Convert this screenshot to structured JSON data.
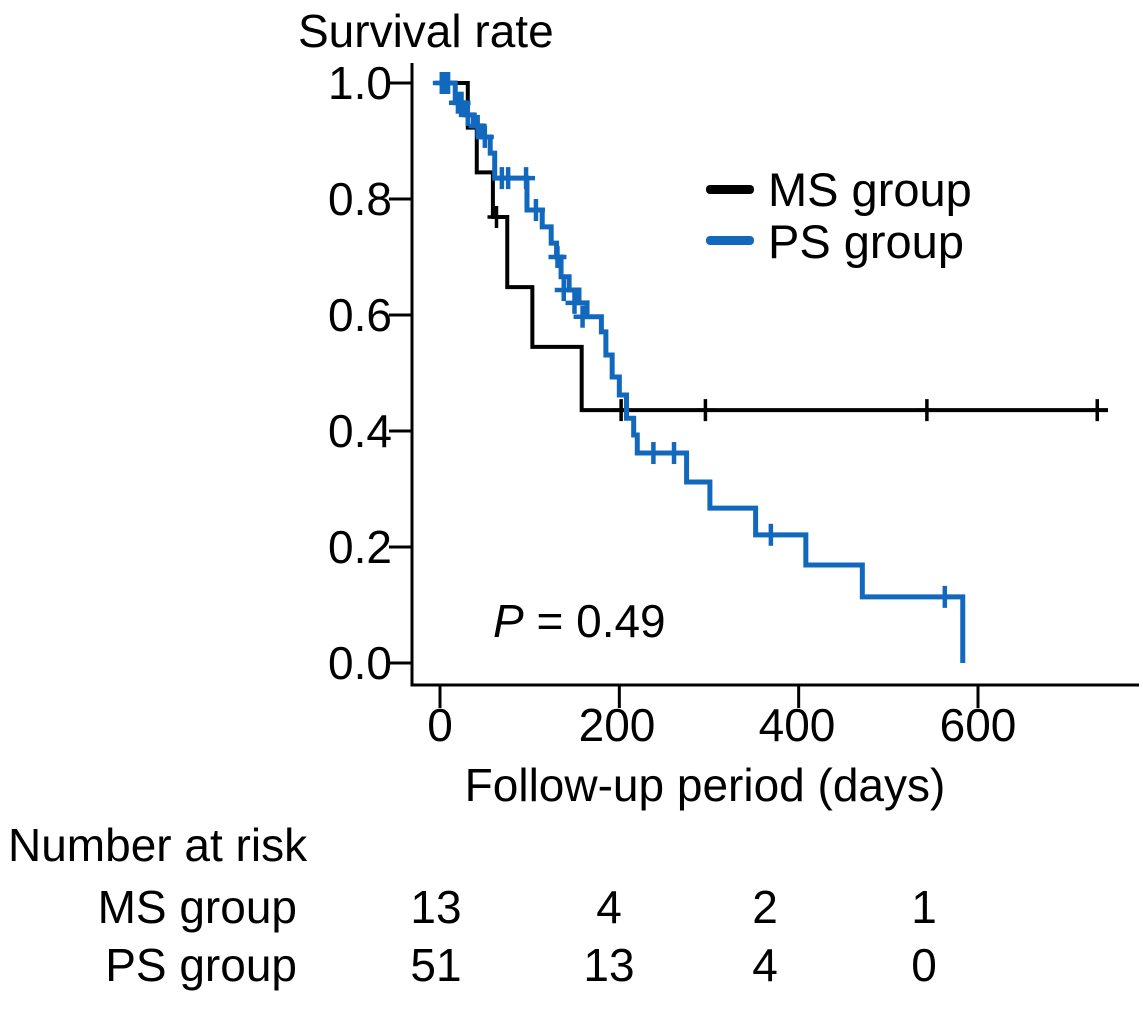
{
  "chart_data": {
    "type": "line",
    "subtype": "kaplan-meier-step",
    "title": "Survival rate",
    "xlabel": "Follow-up period (days)",
    "ylabel": "Survival rate",
    "xlim": [
      0,
      780
    ],
    "ylim": [
      0.0,
      1.0
    ],
    "grid": false,
    "legend_position": "upper right",
    "xticks": [
      0,
      200,
      400,
      600
    ],
    "yticks": [
      1.0,
      0.8,
      0.6,
      0.4,
      0.2,
      0.0
    ],
    "xtick_labels": [
      "0",
      "200",
      "400",
      "600"
    ],
    "ytick_labels": [
      "1.0",
      "0.8",
      "0.6",
      "0.4",
      "0.2",
      "0.0"
    ],
    "annotation": {
      "prefix": "P",
      "rest": " = 0.49"
    },
    "legend": [
      {
        "label": "MS group",
        "color": "#000000"
      },
      {
        "label": "PS group",
        "color": "#1268bd"
      }
    ],
    "series": [
      {
        "name": "MS group",
        "color": "#000000",
        "line_width": 4,
        "end_day": 745,
        "steps": [
          [
            0,
            1.0
          ],
          [
            31,
            0.923
          ],
          [
            41,
            0.846
          ],
          [
            59,
            0.769
          ],
          [
            75,
            0.648
          ],
          [
            103,
            0.545
          ],
          [
            158,
            0.436
          ]
        ],
        "censors": [
          [
            63,
            0.769
          ],
          [
            202,
            0.436
          ],
          [
            296,
            0.436
          ],
          [
            543,
            0.436
          ],
          [
            733,
            0.436
          ]
        ]
      },
      {
        "name": "PS group",
        "color": "#1268bd",
        "line_width": 5,
        "end_day": 583,
        "steps": [
          [
            0,
            1.0
          ],
          [
            17,
            0.966
          ],
          [
            28,
            0.945
          ],
          [
            37,
            0.926
          ],
          [
            47,
            0.907
          ],
          [
            56,
            0.879
          ],
          [
            61,
            0.836
          ],
          [
            97,
            0.781
          ],
          [
            114,
            0.752
          ],
          [
            124,
            0.724
          ],
          [
            130,
            0.7
          ],
          [
            135,
            0.666
          ],
          [
            144,
            0.643
          ],
          [
            155,
            0.621
          ],
          [
            164,
            0.597
          ],
          [
            180,
            0.571
          ],
          [
            185,
            0.531
          ],
          [
            192,
            0.493
          ],
          [
            200,
            0.462
          ],
          [
            208,
            0.422
          ],
          [
            216,
            0.393
          ],
          [
            220,
            0.362
          ],
          [
            275,
            0.312
          ],
          [
            301,
            0.267
          ],
          [
            352,
            0.221
          ],
          [
            408,
            0.169
          ],
          [
            471,
            0.114
          ],
          [
            583,
            0.0
          ]
        ],
        "censors": [
          [
            2,
            1.0
          ],
          [
            5,
            1.0
          ],
          [
            9,
            1.0
          ],
          [
            20,
            0.966
          ],
          [
            24,
            0.966
          ],
          [
            31,
            0.945
          ],
          [
            42,
            0.926
          ],
          [
            50,
            0.907
          ],
          [
            69,
            0.836
          ],
          [
            76,
            0.836
          ],
          [
            96,
            0.836
          ],
          [
            107,
            0.781
          ],
          [
            131,
            0.7
          ],
          [
            138,
            0.643
          ],
          [
            150,
            0.621
          ],
          [
            159,
            0.597
          ],
          [
            238,
            0.362
          ],
          [
            261,
            0.362
          ],
          [
            369,
            0.221
          ],
          [
            563,
            0.114
          ]
        ]
      }
    ],
    "number_at_risk": {
      "header": "Number at risk",
      "time_points": [
        0,
        200,
        400,
        600
      ],
      "rows": [
        {
          "label": "MS group",
          "counts": [
            13,
            4,
            2,
            1
          ]
        },
        {
          "label": "PS group",
          "counts": [
            51,
            13,
            4,
            0
          ]
        }
      ]
    }
  }
}
